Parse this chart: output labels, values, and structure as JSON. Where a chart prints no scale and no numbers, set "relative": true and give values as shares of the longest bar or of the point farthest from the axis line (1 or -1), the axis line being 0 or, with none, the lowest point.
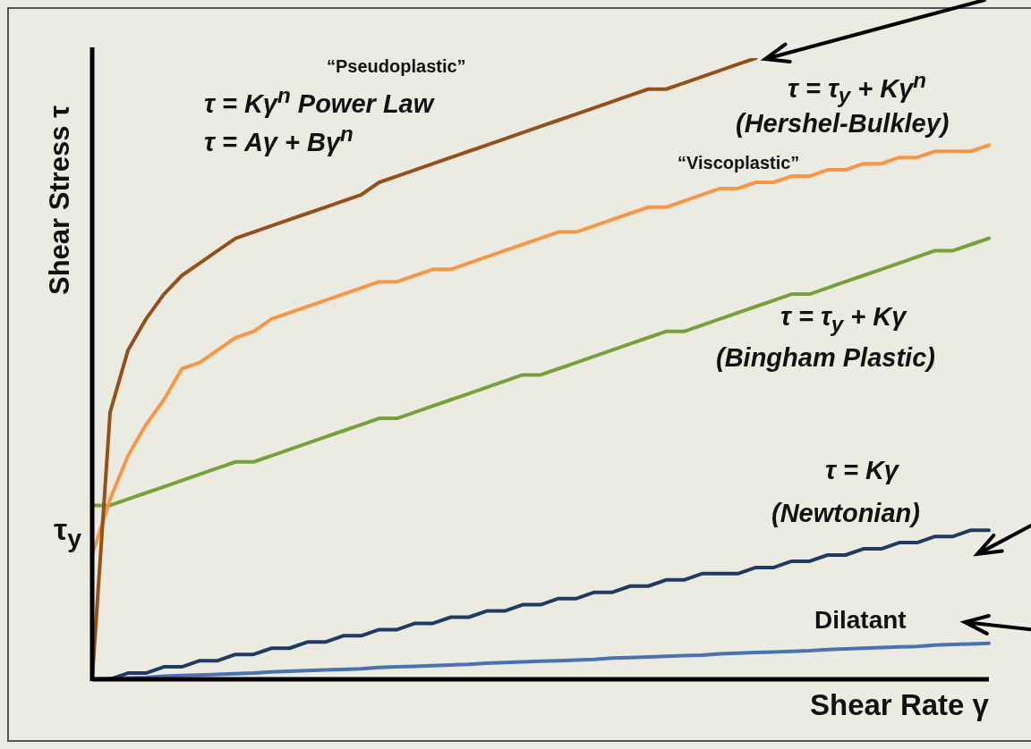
{
  "chart_data": {
    "type": "line",
    "relative": true,
    "xlabel": "Shear Rate γ",
    "ylabel": "Shear Stress τ",
    "categories": [
      null,
      null,
      null,
      null,
      null,
      null,
      null,
      null,
      null,
      null,
      null,
      null,
      null,
      null,
      null,
      null,
      null,
      null,
      null,
      null,
      null,
      null,
      null,
      null,
      null,
      null,
      null,
      null,
      null,
      null,
      null,
      null,
      null,
      null,
      null,
      null,
      null,
      null,
      null,
      null,
      null,
      null,
      null,
      null,
      null,
      null,
      null,
      null,
      null,
      null,
      null
    ],
    "series": [
      {
        "color": "#94501a",
        "values": [
          0,
          0.43,
          0.53,
          0.58,
          0.62,
          0.65,
          0.67,
          0.69,
          0.71,
          0.72,
          0.73,
          0.74,
          0.75,
          0.76,
          0.77,
          0.78,
          0.8,
          0.81,
          0.82,
          0.83,
          0.84,
          0.85,
          0.86,
          0.87,
          0.88,
          0.89,
          0.9,
          0.91,
          0.92,
          0.93,
          0.94,
          0.95,
          0.95,
          0.96,
          0.97,
          0.98,
          0.99,
          1.0,
          null,
          null,
          null,
          null,
          null,
          null,
          null,
          null,
          null,
          null,
          null,
          null,
          null
        ]
      },
      {
        "color": "#f79646",
        "values": [
          0.2,
          0.29,
          0.36,
          0.41,
          0.45,
          0.5,
          0.51,
          0.53,
          0.55,
          0.56,
          0.58,
          0.59,
          0.6,
          0.61,
          0.62,
          0.63,
          0.64,
          0.64,
          0.65,
          0.66,
          0.66,
          0.67,
          0.68,
          0.69,
          0.7,
          0.71,
          0.72,
          0.72,
          0.73,
          0.74,
          0.75,
          0.76,
          0.76,
          0.77,
          0.78,
          0.79,
          0.79,
          0.8,
          0.8,
          0.81,
          0.81,
          0.82,
          0.82,
          0.83,
          0.83,
          0.84,
          0.84,
          0.85,
          0.85,
          0.85,
          0.86
        ]
      },
      {
        "color": "#77a03b",
        "values": [
          0.28,
          0.28,
          0.29,
          0.3,
          0.31,
          0.32,
          0.33,
          0.34,
          0.35,
          0.35,
          0.36,
          0.37,
          0.38,
          0.39,
          0.4,
          0.41,
          0.42,
          0.42,
          0.43,
          0.44,
          0.45,
          0.46,
          0.47,
          0.48,
          0.49,
          0.49,
          0.5,
          0.51,
          0.52,
          0.53,
          0.54,
          0.55,
          0.56,
          0.56,
          0.57,
          0.58,
          0.59,
          0.6,
          0.61,
          0.62,
          0.62,
          0.63,
          0.64,
          0.65,
          0.66,
          0.67,
          0.68,
          0.69,
          0.69,
          0.7,
          0.71
        ]
      },
      {
        "color": "#213a63",
        "values": [
          0,
          0.0,
          0.01,
          0.01,
          0.02,
          0.02,
          0.03,
          0.03,
          0.04,
          0.04,
          0.05,
          0.05,
          0.06,
          0.06,
          0.07,
          0.07,
          0.08,
          0.08,
          0.09,
          0.09,
          0.1,
          0.1,
          0.11,
          0.11,
          0.12,
          0.12,
          0.13,
          0.13,
          0.14,
          0.14,
          0.15,
          0.15,
          0.16,
          0.16,
          0.17,
          0.17,
          0.17,
          0.18,
          0.18,
          0.19,
          0.19,
          0.2,
          0.2,
          0.21,
          0.21,
          0.22,
          0.22,
          0.23,
          0.23,
          0.24,
          0.24
        ]
      },
      {
        "color": "#4a72b0",
        "values": [
          0,
          0.001,
          0.002,
          0.003,
          0.005,
          0.006,
          0.007,
          0.008,
          0.009,
          0.01,
          0.012,
          0.013,
          0.014,
          0.015,
          0.016,
          0.017,
          0.019,
          0.02,
          0.021,
          0.022,
          0.023,
          0.024,
          0.026,
          0.027,
          0.028,
          0.029,
          0.03,
          0.031,
          0.032,
          0.034,
          0.035,
          0.036,
          0.037,
          0.038,
          0.039,
          0.041,
          0.042,
          0.043,
          0.044,
          0.045,
          0.046,
          0.048,
          0.049,
          0.05,
          0.051,
          0.052,
          0.053,
          0.055,
          0.056,
          0.057,
          0.058
        ]
      }
    ],
    "annotations": [
      "“Pseudoplastic”",
      "τ = Kγ$^{n}$  Power Law",
      "τ = Aγ + Bγ$^{n}$",
      "τ = τ$_{y}$ + Kγ$^{n}$",
      "(Hershel-Bulkley)",
      "“Viscoplastic”",
      "τ = τ$_{y}$ + Kγ",
      "(Bingham Plastic)",
      "τ = Kγ",
      "(Newtonian)",
      "Dilatant",
      "τ$_{y}$"
    ]
  }
}
